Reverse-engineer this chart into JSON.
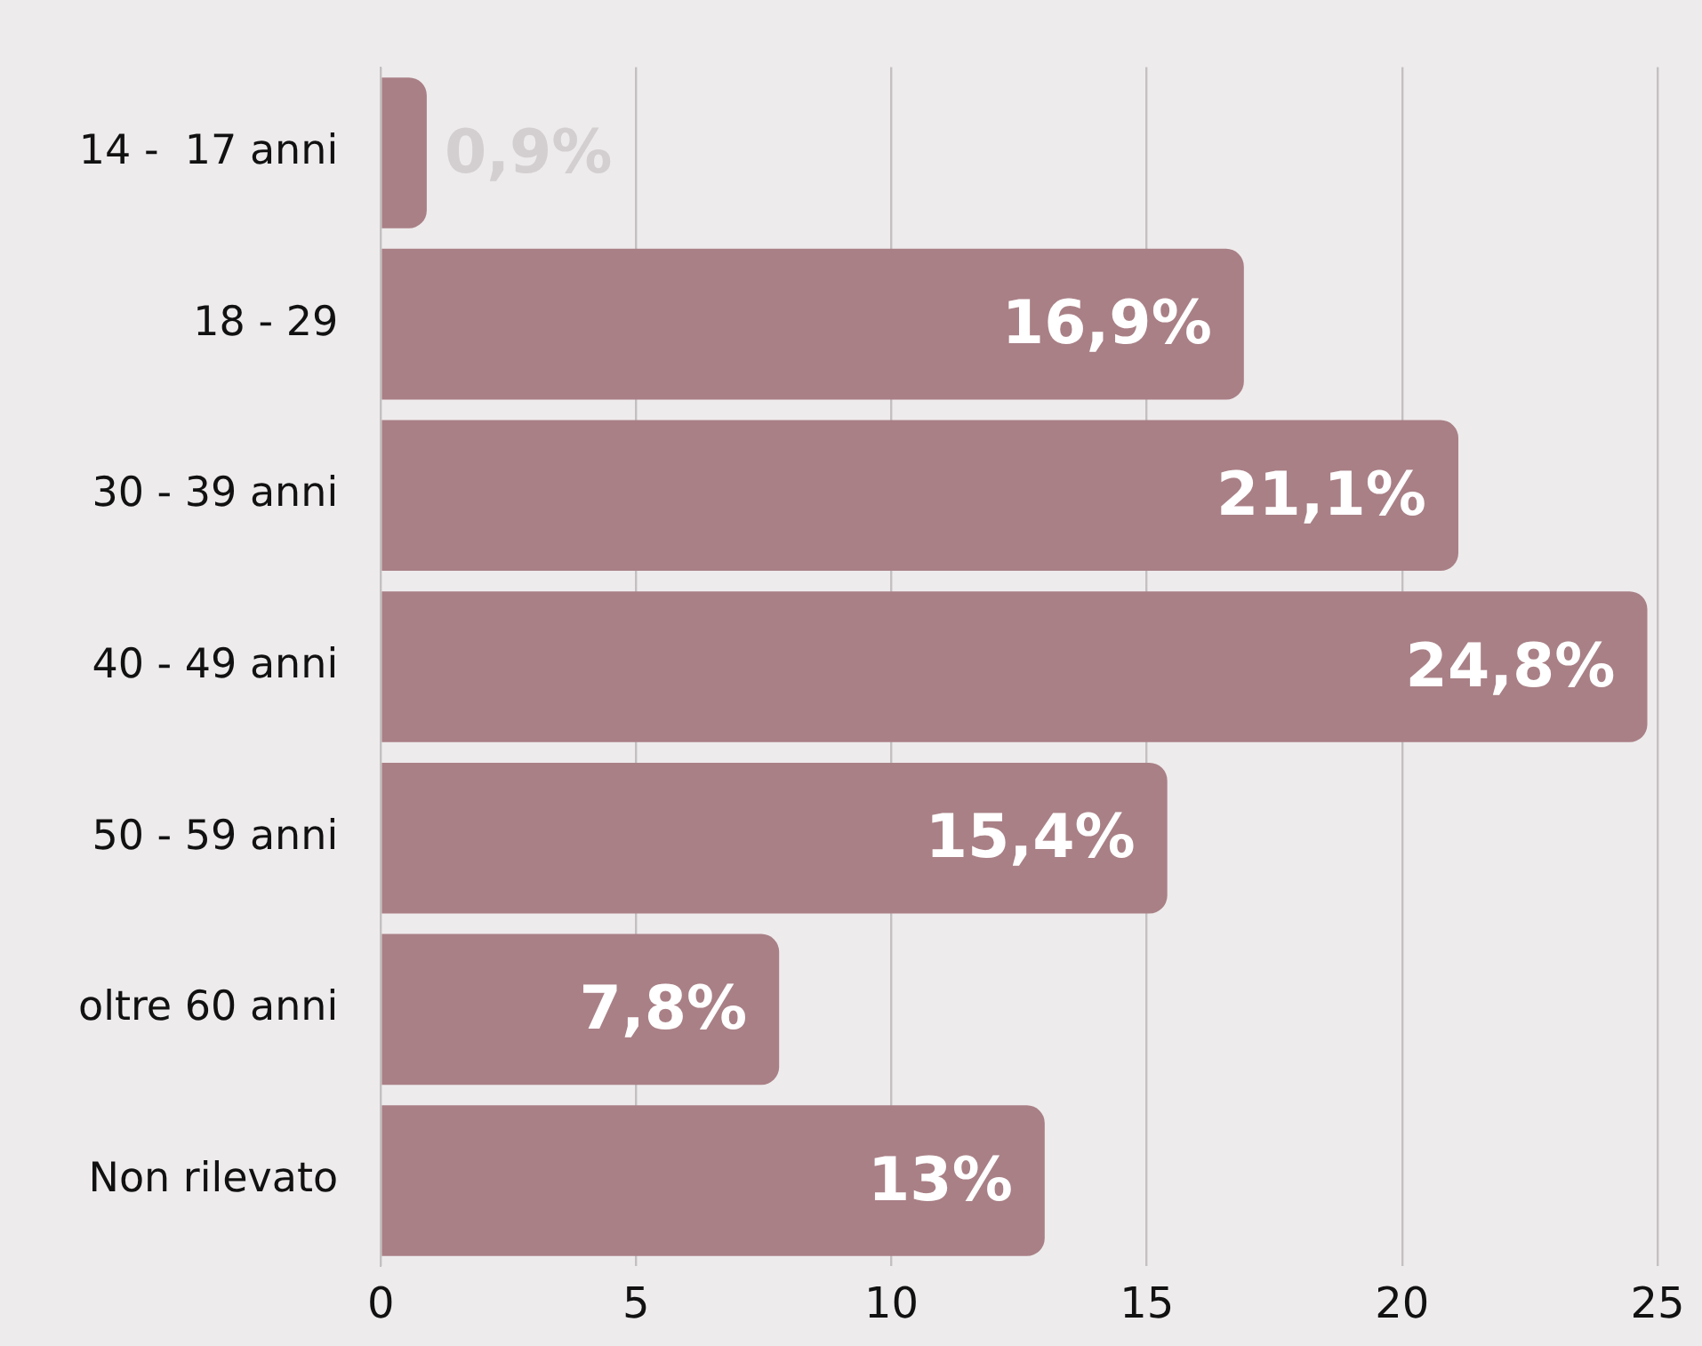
{
  "chart_data": {
    "type": "bar",
    "orientation": "horizontal",
    "categories": [
      "14 -  17 anni",
      "18 - 29",
      "30 - 39 anni",
      "40 - 49 anni",
      "50 - 59 anni",
      "oltre 60 anni",
      "Non rilevato"
    ],
    "values": [
      0.9,
      16.9,
      21.1,
      24.8,
      15.4,
      7.8,
      13
    ],
    "value_labels": [
      "0,9%",
      "16,9%",
      "21,1%",
      "24,8%",
      "15,4%",
      "7,8%",
      "13%"
    ],
    "color": "#a98086",
    "xlim": [
      0,
      25
    ],
    "xticks": [
      0,
      5,
      10,
      15,
      20,
      25
    ],
    "grid": "x"
  }
}
